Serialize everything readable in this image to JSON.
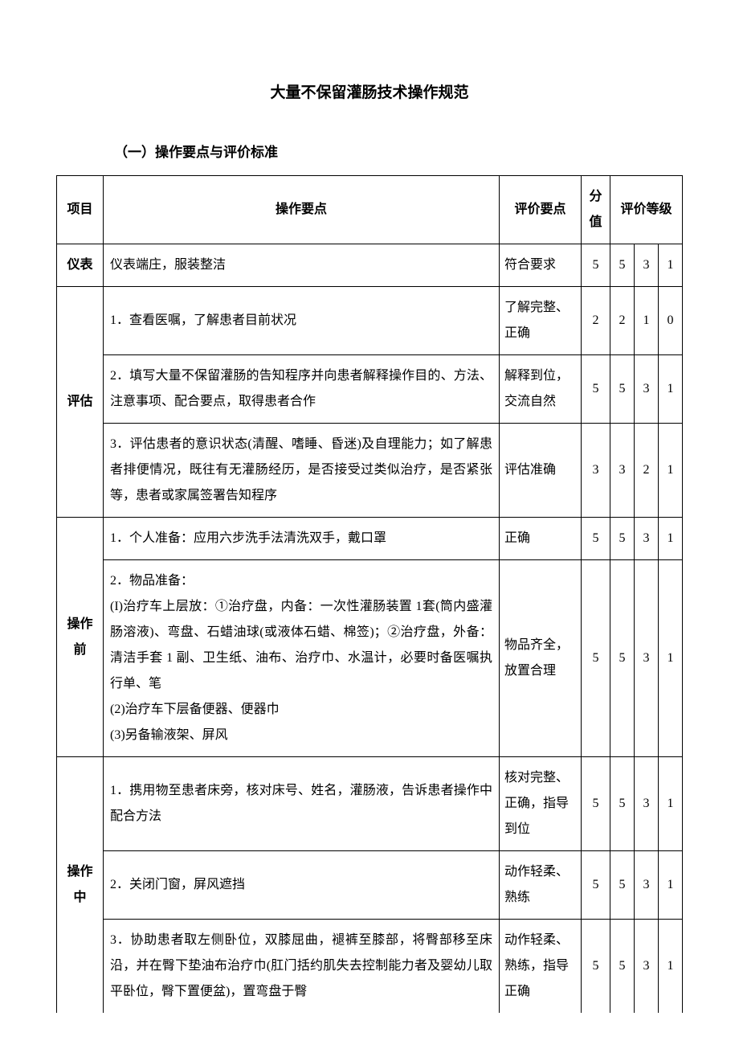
{
  "title": "大量不保留灌肠技术操作规范",
  "subtitle": "（一）操作要点与评价标准",
  "headers": {
    "project": "项目",
    "operation_points": "操作要点",
    "eval_points": "评价要点",
    "score": "分值",
    "grade": "评价等级"
  },
  "rows": [
    {
      "project": "仪表",
      "rowspan": 1,
      "operation": "仪表端庄，服装整洁",
      "eval": "符合要求",
      "score": "5",
      "grades": [
        "5",
        "3",
        "1"
      ]
    },
    {
      "project": "评估",
      "rowspan": 3,
      "items": [
        {
          "operation": "1．查看医嘱，了解患者目前状况",
          "eval": "了解完整、正确",
          "score": "2",
          "grades": [
            "2",
            "1",
            "0"
          ]
        },
        {
          "operation": "2．填写大量不保留灌肠的告知程序并向患者解释操作目的、方法、注意事项、配合要点，取得患者合作",
          "eval": "解释到位，交流自然",
          "score": "5",
          "grades": [
            "5",
            "3",
            "1"
          ]
        },
        {
          "operation": "3．评估患者的意识状态(清醒、嗜睡、昏迷)及自理能力；如了解患者排便情况，既往有无灌肠经历，是否接受过类似治疗，是否紧张等，患者或家属签署告知程序",
          "eval": "评估准确",
          "score": "3",
          "grades": [
            "3",
            "2",
            "1"
          ]
        }
      ]
    },
    {
      "project": "操作前",
      "rowspan": 2,
      "items": [
        {
          "operation": "1．个人准备：应用六步洗手法清洗双手，戴口罩",
          "eval": "正确",
          "score": "5",
          "grades": [
            "5",
            "3",
            "1"
          ]
        },
        {
          "operation": "2．物品准备：\n(I)治疗车上层放：①治疗盘，内备：一次性灌肠装置 1套(筒内盛灌肠溶液)、弯盘、石蜡油球(或液体石蜡、棉签)；②治疗盘，外备：清洁手套 1 副、卫生纸、油布、治疗巾、水温计，必要时备医嘱执行单、笔\n(2)治疗车下层备便器、便器巾\n(3)另备输液架、屏风",
          "eval": "物品齐全，放置合理",
          "score": "5",
          "grades": [
            "5",
            "3",
            "1"
          ]
        }
      ]
    },
    {
      "project": "操作中",
      "rowspan": 3,
      "items": [
        {
          "operation": "1．携用物至患者床旁，核对床号、姓名，灌肠液，告诉患者操作中配合方法",
          "eval": "核对完整、正确，指导到位",
          "score": "5",
          "grades": [
            "5",
            "3",
            "1"
          ]
        },
        {
          "operation": "2．关闭门窗，屏风遮挡",
          "eval": "动作轻柔、熟练",
          "score": "5",
          "grades": [
            "5",
            "3",
            "1"
          ]
        },
        {
          "operation": "3．协助患者取左侧卧位，双膝屈曲，褪裤至膝部，将臀部移至床沿，并在臀下垫油布治疗巾(肛门括约肌失去控制能力者及婴幼儿取平卧位，臀下置便盆)，置弯盘于臀",
          "eval": "动作轻柔、熟练，指导正确",
          "score": "5",
          "grades": [
            "5",
            "3",
            "1"
          ]
        }
      ]
    }
  ]
}
